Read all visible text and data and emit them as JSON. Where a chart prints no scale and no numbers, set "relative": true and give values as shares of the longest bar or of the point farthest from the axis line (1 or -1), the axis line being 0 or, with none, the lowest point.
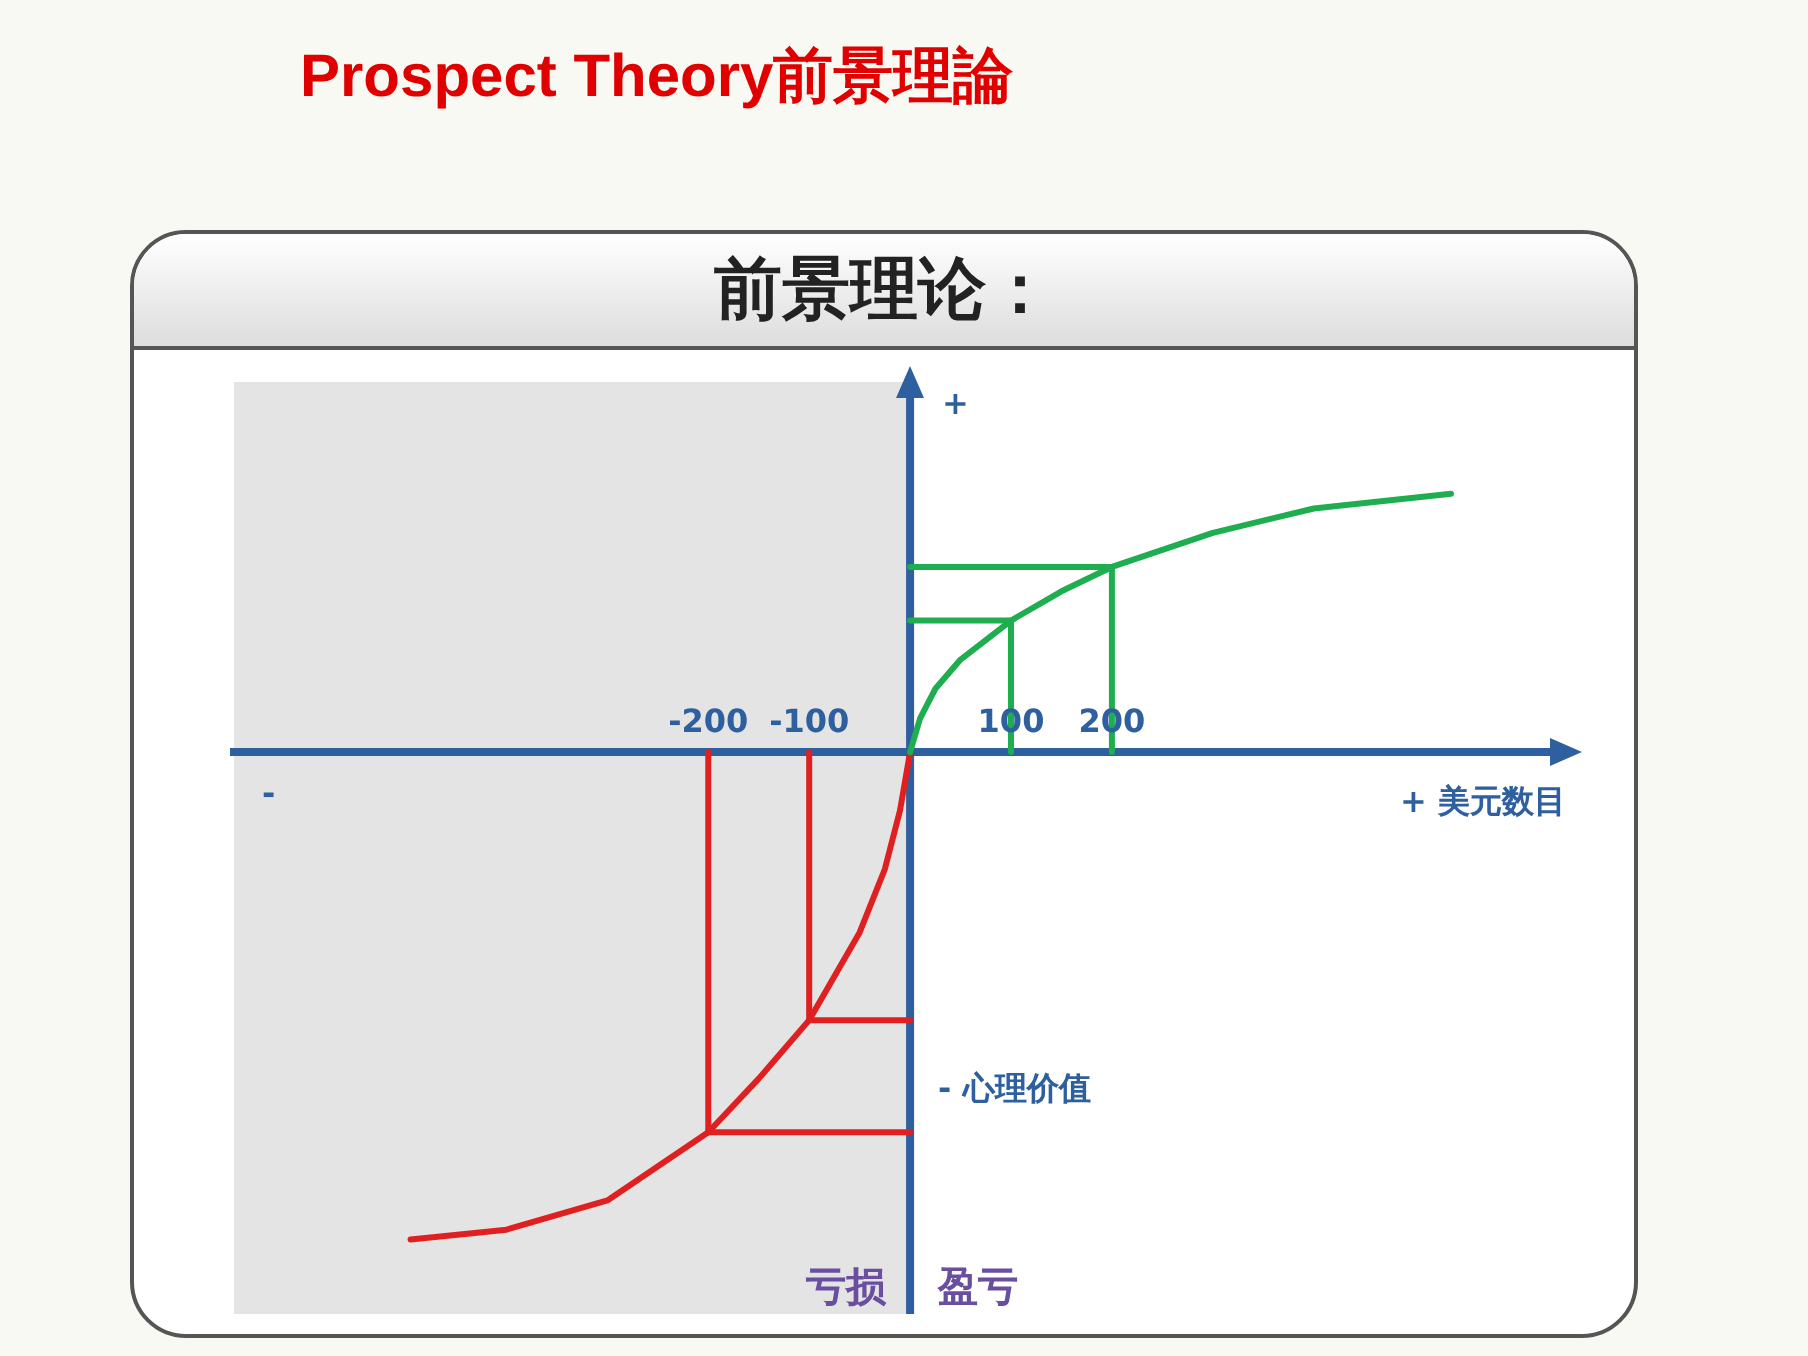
{
  "chart_data": {
    "type": "line",
    "title": "Prospect Theory前景理論",
    "subtitle": "前景理论：",
    "xlabel": "+ 美元数目",
    "ylabel": "- 心理价值",
    "annotations": [
      "+",
      "-",
      "亏损",
      "盈亏"
    ],
    "xlim": [
      -670,
      650
    ],
    "xticks": [
      -200,
      -100,
      100,
      200
    ],
    "relative": true,
    "grid": false,
    "legend": false,
    "marker": "none",
    "line_style": "solid",
    "ref_lines": [
      {
        "axis": "x",
        "value": 0,
        "color": "#2e5f9e"
      }
    ],
    "bands": [
      {
        "axis": "x",
        "from": -670,
        "to": 0,
        "color": "#e4e4e4"
      }
    ],
    "series": [
      {
        "color": "#1fae4f",
        "x": [
          0,
          10,
          25,
          50,
          100,
          150,
          200,
          300,
          400,
          536
        ],
        "values": [
          0,
          0.07,
          0.13,
          0.19,
          0.27,
          0.33,
          0.38,
          0.45,
          0.5,
          0.53
        ]
      },
      {
        "color": "#e02020",
        "x": [
          -495,
          -400,
          -300,
          -200,
          -150,
          -100,
          -50,
          -25,
          -10,
          0
        ],
        "values": [
          -1,
          -0.98,
          -0.92,
          -0.78,
          -0.67,
          -0.55,
          -0.37,
          -0.24,
          -0.12,
          0
        ]
      },
      {
        "color": "#1fae4f",
        "x": [
          100,
          100,
          0
        ],
        "values": [
          0,
          0.27,
          0.27
        ]
      },
      {
        "color": "#1fae4f",
        "x": [
          200,
          200,
          0
        ],
        "values": [
          0,
          0.38,
          0.38
        ]
      },
      {
        "color": "#e02020",
        "x": [
          -100,
          -100,
          0
        ],
        "values": [
          0,
          -0.55,
          -0.55
        ]
      },
      {
        "color": "#e02020",
        "x": [
          -200,
          -200,
          0
        ],
        "values": [
          0,
          -0.78,
          -0.78
        ]
      }
    ]
  }
}
